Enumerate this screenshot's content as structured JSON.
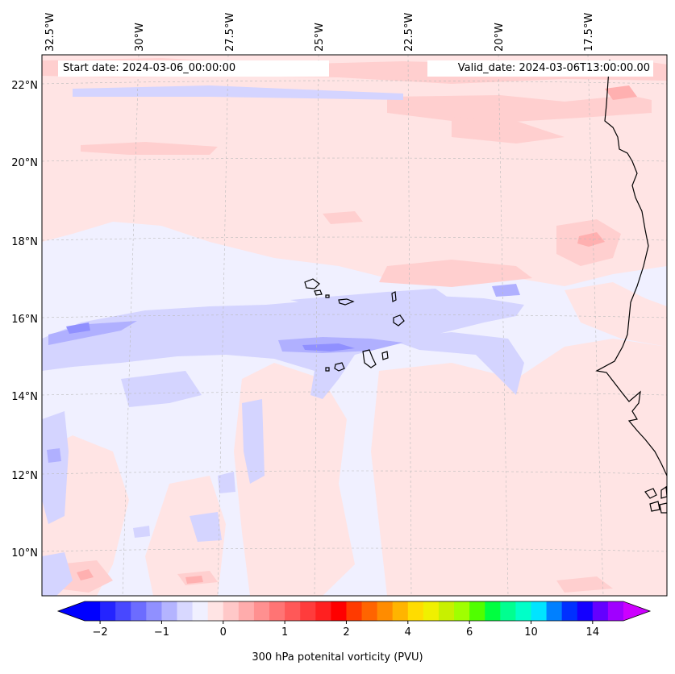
{
  "title_left": "Start date: 2024-03-06_00:00:00",
  "title_right": "Valid_date: 2024-03-06T13:00:00.00",
  "longitude_labels": [
    "32.5°W",
    "30°W",
    "27.5°W",
    "25°W",
    "22.5°W",
    "20°W",
    "17.5°W"
  ],
  "latitude_labels": [
    "22°N",
    "20°N",
    "18°N",
    "16°N",
    "14°N",
    "12°N",
    "10°N"
  ],
  "colorbar": {
    "label": "300 hPa potenital vorticity (PVU)",
    "tick_labels": [
      "−2",
      "−1",
      "0",
      "1",
      "2",
      "4",
      "6",
      "10",
      "14"
    ],
    "colors": [
      "#0000ff",
      "#2424ff",
      "#4848ff",
      "#6c6cff",
      "#9090ff",
      "#b4b4ff",
      "#d8d8ff",
      "#f0f0ff",
      "#ffe4e4",
      "#ffc8c8",
      "#ffacac",
      "#ff9090",
      "#ff7474",
      "#ff5858",
      "#ff3c3c",
      "#ff2020",
      "#ff0000",
      "#ff3a00",
      "#ff6400",
      "#ff8c00",
      "#ffb400",
      "#ffdc00",
      "#f0f000",
      "#c8f000",
      "#a0ff00",
      "#50ff00",
      "#00ff40",
      "#00ff90",
      "#00ffc8",
      "#00e4ff",
      "#0080ff",
      "#0030ff",
      "#1400ff",
      "#6400ff",
      "#a000ff"
    ],
    "under_color": "#0000ff",
    "over_color": "#cc00ff"
  },
  "map": {
    "background_color": "#f0f0ff",
    "features": [
      "coastline",
      "Cape Verde islands",
      "gridlines"
    ]
  }
}
